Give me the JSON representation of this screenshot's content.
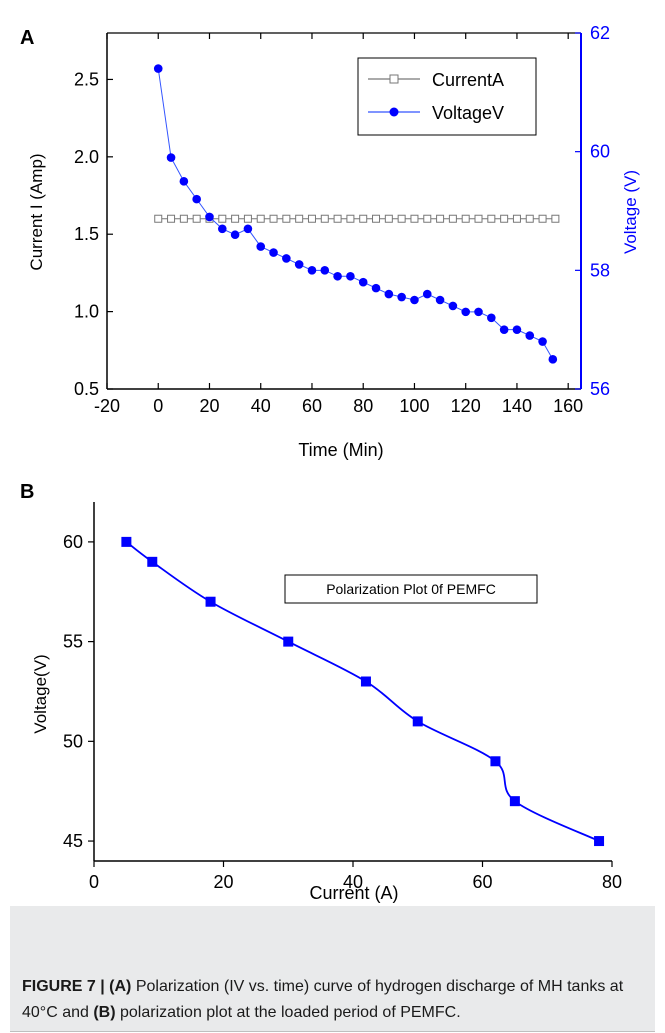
{
  "chart_data": [
    {
      "panel_label": "A",
      "type": "line",
      "xlabel": "Time (Min)",
      "ylabel": "Current I (Amp)",
      "y2label": "Voltage (V)",
      "xlim": [
        -20,
        165
      ],
      "ylim": [
        0.5,
        2.8
      ],
      "y2lim": [
        56,
        62
      ],
      "xticks": [
        "-20",
        "0",
        "20",
        "40",
        "60",
        "80",
        "100",
        "120",
        "140",
        "160"
      ],
      "yticks": [
        "0.5",
        "1.0",
        "1.5",
        "2.0",
        "2.5"
      ],
      "y2ticks": [
        "56",
        "58",
        "60",
        "62"
      ],
      "legend_position": "top-right",
      "series": [
        {
          "name": "CurrentA",
          "axis": "left",
          "color": "#777777",
          "marker": "open-square",
          "x": [
            0,
            5,
            10,
            15,
            20,
            25,
            30,
            35,
            40,
            45,
            50,
            55,
            60,
            65,
            70,
            75,
            80,
            85,
            90,
            95,
            100,
            105,
            110,
            115,
            120,
            125,
            130,
            135,
            140,
            145,
            150,
            155
          ],
          "values": [
            1.6,
            1.6,
            1.6,
            1.6,
            1.6,
            1.6,
            1.6,
            1.6,
            1.6,
            1.6,
            1.6,
            1.6,
            1.6,
            1.6,
            1.6,
            1.6,
            1.6,
            1.6,
            1.6,
            1.6,
            1.6,
            1.6,
            1.6,
            1.6,
            1.6,
            1.6,
            1.6,
            1.6,
            1.6,
            1.6,
            1.6,
            1.6
          ]
        },
        {
          "name": "VoltageV",
          "axis": "right",
          "color": "#0000ff",
          "marker": "filled-circle",
          "x": [
            0,
            5,
            10,
            15,
            20,
            25,
            30,
            35,
            40,
            45,
            50,
            55,
            60,
            65,
            70,
            75,
            80,
            85,
            90,
            95,
            100,
            105,
            110,
            115,
            120,
            125,
            130,
            135,
            140,
            145,
            150,
            154
          ],
          "values": [
            61.4,
            59.9,
            59.5,
            59.2,
            58.9,
            58.7,
            58.6,
            58.7,
            58.4,
            58.3,
            58.2,
            58.1,
            58.0,
            58.0,
            57.9,
            57.9,
            57.8,
            57.7,
            57.6,
            57.55,
            57.5,
            57.6,
            57.5,
            57.4,
            57.3,
            57.3,
            57.2,
            57.0,
            57.0,
            56.9,
            56.8,
            56.5
          ]
        }
      ]
    },
    {
      "panel_label": "B",
      "type": "line",
      "xlabel": "Current (A)",
      "ylabel": "Voltage(V)",
      "xlim": [
        0,
        80
      ],
      "ylim": [
        44,
        62
      ],
      "xticks": [
        "0",
        "20",
        "40",
        "60",
        "80"
      ],
      "yticks": [
        "45",
        "50",
        "55",
        "60"
      ],
      "annotation": "Polarization Plot 0f PEMFC",
      "series": [
        {
          "color": "#0000ff",
          "marker": "filled-square",
          "x": [
            5,
            9,
            18,
            30,
            42,
            50,
            62,
            65,
            78
          ],
          "values": [
            60,
            59,
            57,
            55,
            53,
            51,
            49,
            47,
            45
          ]
        }
      ]
    }
  ],
  "caption": {
    "label": "FIGURE 7 | ",
    "a_tag": "(A)",
    "text1": " Polarization (IV vs. time) curve of hydrogen discharge of MH tanks at 40°C and ",
    "b_tag": "(B)",
    "text2": " polarization plot at the loaded period of PEMFC."
  }
}
